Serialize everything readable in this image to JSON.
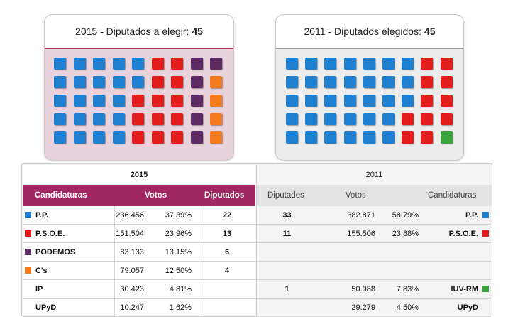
{
  "colors": {
    "pp": "#1f7fd1",
    "psoe": "#e31c1c",
    "podemos": "#5e2a63",
    "cs": "#f47b20",
    "iuvrm": "#3aa43a"
  },
  "seats2015": {
    "title": "2015 - Diputados a elegir:",
    "total": "45",
    "rows": [
      [
        "pp",
        "pp",
        "pp",
        "pp",
        "pp",
        "psoe",
        "psoe",
        "podemos",
        "podemos"
      ],
      [
        "pp",
        "pp",
        "pp",
        "pp",
        "pp",
        "psoe",
        "psoe",
        "podemos",
        "cs"
      ],
      [
        "pp",
        "pp",
        "pp",
        "pp",
        "psoe",
        "psoe",
        "psoe",
        "podemos",
        "cs"
      ],
      [
        "pp",
        "pp",
        "pp",
        "pp",
        "psoe",
        "psoe",
        "psoe",
        "podemos",
        "cs"
      ],
      [
        "pp",
        "pp",
        "pp",
        "pp",
        "psoe",
        "psoe",
        "psoe",
        "podemos",
        "cs"
      ]
    ]
  },
  "seats2011": {
    "title": "2011 - Diputados elegidos:",
    "total": "45",
    "rows": [
      [
        "pp",
        "pp",
        "pp",
        "pp",
        "pp",
        "pp",
        "pp",
        "psoe",
        "psoe"
      ],
      [
        "pp",
        "pp",
        "pp",
        "pp",
        "pp",
        "pp",
        "pp",
        "psoe",
        "psoe"
      ],
      [
        "pp",
        "pp",
        "pp",
        "pp",
        "pp",
        "pp",
        "pp",
        "psoe",
        "psoe"
      ],
      [
        "pp",
        "pp",
        "pp",
        "pp",
        "pp",
        "pp",
        "psoe",
        "psoe",
        "psoe"
      ],
      [
        "pp",
        "pp",
        "pp",
        "pp",
        "pp",
        "pp",
        "psoe",
        "psoe",
        "iuvrm"
      ]
    ]
  },
  "table": {
    "year_2015": "2015",
    "year_2011": "2011",
    "head_left": {
      "candidaturas": "Candidaturas",
      "votos": "Votos",
      "diputados": "Diputados"
    },
    "head_right": {
      "diputados": "Diputados",
      "votos": "Votos",
      "candidaturas": "Candidaturas"
    },
    "rows": [
      {
        "party": "P.P.",
        "color": "pp",
        "votos": "236.456",
        "pct": "37,39%",
        "dip": "22",
        "dip11": "33",
        "votos11": "382.871",
        "pct11": "58,79%",
        "party11": "P.P.",
        "color11": "pp"
      },
      {
        "party": "P.S.O.E.",
        "color": "psoe",
        "votos": "151.504",
        "pct": "23,96%",
        "dip": "13",
        "dip11": "11",
        "votos11": "155.506",
        "pct11": "23,88%",
        "party11": "P.S.O.E.",
        "color11": "psoe"
      },
      {
        "party": "PODEMOS",
        "color": "podemos",
        "votos": "83.133",
        "pct": "13,15%",
        "dip": "6",
        "dip11": "",
        "votos11": "",
        "pct11": "",
        "party11": "",
        "color11": ""
      },
      {
        "party": "C's",
        "color": "cs",
        "votos": "79.057",
        "pct": "12,50%",
        "dip": "4",
        "dip11": "",
        "votos11": "",
        "pct11": "",
        "party11": "",
        "color11": ""
      },
      {
        "party": "IP",
        "color": "",
        "votos": "30.423",
        "pct": "4,81%",
        "dip": "",
        "dip11": "1",
        "votos11": "50.988",
        "pct11": "7,83%",
        "party11": "IUV-RM",
        "color11": "iuvrm"
      },
      {
        "party": "UPyD",
        "color": "",
        "votos": "10.247",
        "pct": "1,62%",
        "dip": "",
        "dip11": "",
        "votos11": "29.279",
        "pct11": "4,50%",
        "party11": "UPyD",
        "color11": ""
      }
    ]
  }
}
